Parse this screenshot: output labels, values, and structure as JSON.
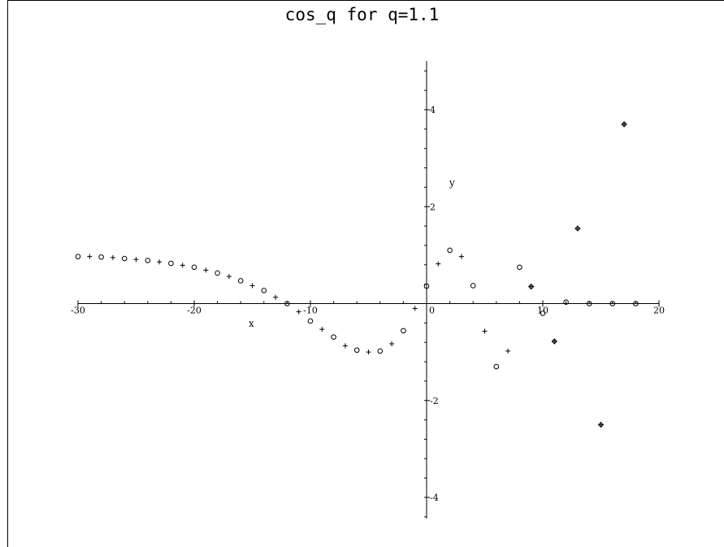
{
  "chart_data": {
    "type": "scatter",
    "title": "cos_q for q=1.1",
    "xlabel": "x",
    "ylabel": "y",
    "xlim": [
      -30,
      20
    ],
    "ylim": [
      -4,
      4
    ],
    "x_ticks": [
      -30,
      -20,
      -10,
      0,
      10,
      20
    ],
    "y_ticks": [
      -4,
      -2,
      2,
      4
    ],
    "x_tick_labels": [
      "-30",
      "-20",
      "-10",
      "0",
      "10",
      "20"
    ],
    "y_tick_labels": [
      "-4",
      "-2",
      "2",
      "4"
    ],
    "grid": false,
    "legend": "none",
    "series": [
      {
        "marker": "circle",
        "points": [
          [
            -30,
            0.97
          ],
          [
            -28,
            0.96
          ],
          [
            -26,
            0.93
          ],
          [
            -24,
            0.89
          ],
          [
            -22,
            0.83
          ],
          [
            -20,
            0.75
          ],
          [
            -18,
            0.63
          ],
          [
            -16,
            0.47
          ],
          [
            -14,
            0.27
          ],
          [
            -12,
            0.0
          ],
          [
            -10,
            -0.36
          ],
          [
            -8,
            -0.69
          ],
          [
            -6,
            -0.96
          ],
          [
            -4,
            -0.98
          ],
          [
            -2,
            -0.56
          ],
          [
            0,
            0.36
          ],
          [
            2,
            1.1
          ],
          [
            4,
            0.37
          ],
          [
            6,
            -1.3
          ],
          [
            8,
            0.75
          ],
          [
            10,
            -0.2
          ],
          [
            12,
            0.03
          ],
          [
            14,
            0.0
          ],
          [
            16,
            0.0
          ],
          [
            18,
            0.0
          ]
        ]
      },
      {
        "marker": "plus",
        "points": [
          [
            -29,
            0.97
          ],
          [
            -27,
            0.95
          ],
          [
            -25,
            0.91
          ],
          [
            -23,
            0.86
          ],
          [
            -21,
            0.79
          ],
          [
            -19,
            0.69
          ],
          [
            -17,
            0.56
          ],
          [
            -15,
            0.37
          ],
          [
            -13,
            0.13
          ],
          [
            -11,
            -0.17
          ],
          [
            -9,
            -0.53
          ],
          [
            -7,
            -0.87
          ],
          [
            -5,
            -1.0
          ],
          [
            -3,
            -0.83
          ],
          [
            -1,
            -0.1
          ],
          [
            1,
            0.82
          ],
          [
            3,
            0.97
          ],
          [
            5,
            -0.57
          ],
          [
            7,
            -0.98
          ],
          [
            9,
            0.35
          ],
          [
            11,
            -0.78
          ],
          [
            13,
            1.55
          ],
          [
            15,
            -2.5
          ],
          [
            17,
            3.7
          ]
        ]
      },
      {
        "marker": "diamond",
        "points": [
          [
            9,
            0.35
          ],
          [
            11,
            -0.78
          ],
          [
            13,
            1.55
          ],
          [
            15,
            -2.5
          ],
          [
            17,
            3.7
          ]
        ]
      }
    ]
  }
}
